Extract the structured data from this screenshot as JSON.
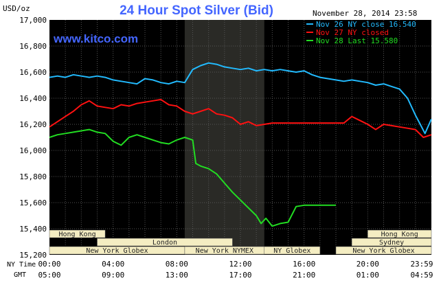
{
  "chart_data": {
    "type": "line",
    "title": "24 Hour Spot Silver (Bid)",
    "watermark": "www.kitco.com",
    "ylabel": "USD/oz",
    "date_label": "November 28, 2014 23:58",
    "ylim": [
      15.2,
      17.0
    ],
    "yticks": [
      "17,000",
      "16,800",
      "16,600",
      "16,400",
      "16,200",
      "16,000",
      "15,800",
      "15,600",
      "15,400",
      "15,200"
    ],
    "ytick_values": [
      17.0,
      16.8,
      16.6,
      16.4,
      16.2,
      16.0,
      15.8,
      15.6,
      15.4,
      15.2
    ],
    "x_axis_ny_label": "NY Time",
    "x_axis_gmt_label": "GMT",
    "x_ticks_ny": [
      "00:00",
      "04:00",
      "08:00",
      "12:00",
      "16:00",
      "20:00",
      "23:59"
    ],
    "x_ticks_gmt": [
      "05:00",
      "09:00",
      "13:00",
      "17:00",
      "21:00",
      "01:00",
      "04:59"
    ],
    "x_tick_hours": [
      0,
      4,
      8,
      12,
      16,
      20,
      23.98
    ],
    "highlight_hours": [
      8.5,
      13.5
    ],
    "colors": {
      "background": "#000000",
      "grid": "#555555",
      "highlight": "#2a2a26",
      "title": "#4466ff",
      "watermark": "#4466ff",
      "market_band": "#f4edc2",
      "market_text": "#222222"
    },
    "legend": [
      {
        "label": "Nov 26 NY close 16.540",
        "color": "#22bbff"
      },
      {
        "label": "Nov 27 NY closed",
        "color": "#ff1111"
      },
      {
        "label": "Nov 28 Last 15.580",
        "color": "#22dd22"
      }
    ],
    "series": [
      {
        "name": "Nov 26 NY close 16.540",
        "color": "#22bbff",
        "x": [
          0,
          0.5,
          1,
          1.5,
          2,
          2.5,
          3,
          3.5,
          4,
          4.5,
          5,
          5.5,
          6,
          6.5,
          7,
          7.5,
          8,
          8.5,
          9,
          9.5,
          10,
          10.5,
          11,
          11.5,
          12,
          12.5,
          13,
          13.5,
          14,
          14.5,
          15,
          15.5,
          16,
          16.5,
          17,
          17.5,
          18,
          18.5,
          19,
          19.5,
          20,
          20.5,
          21,
          21.5,
          22,
          22.5,
          23,
          23.3,
          23.6,
          24
        ],
        "y": [
          16.56,
          16.57,
          16.56,
          16.58,
          16.57,
          16.56,
          16.57,
          16.56,
          16.54,
          16.53,
          16.52,
          16.51,
          16.55,
          16.54,
          16.52,
          16.51,
          16.53,
          16.52,
          16.62,
          16.65,
          16.67,
          16.66,
          16.64,
          16.63,
          16.62,
          16.63,
          16.61,
          16.62,
          16.61,
          16.62,
          16.61,
          16.6,
          16.61,
          16.58,
          16.56,
          16.55,
          16.54,
          16.53,
          16.54,
          16.53,
          16.52,
          16.5,
          16.51,
          16.49,
          16.47,
          16.4,
          16.27,
          16.2,
          16.13,
          16.24
        ]
      },
      {
        "name": "Nov 27 NY closed",
        "color": "#ff1111",
        "x": [
          0,
          0.5,
          1,
          1.5,
          2,
          2.5,
          3,
          3.5,
          4,
          4.5,
          5,
          5.5,
          6,
          6.5,
          7,
          7.5,
          8,
          8.5,
          9,
          9.5,
          10,
          10.5,
          11,
          11.5,
          12,
          12.5,
          13,
          13.5,
          14,
          15,
          16,
          17,
          18,
          18.5,
          19,
          19.5,
          20,
          20.5,
          21,
          21.5,
          22,
          22.5,
          23,
          23.5,
          24
        ],
        "y": [
          16.18,
          16.22,
          16.26,
          16.3,
          16.35,
          16.38,
          16.34,
          16.33,
          16.32,
          16.35,
          16.34,
          16.36,
          16.37,
          16.38,
          16.39,
          16.35,
          16.34,
          16.3,
          16.28,
          16.3,
          16.32,
          16.28,
          16.27,
          16.25,
          16.2,
          16.22,
          16.19,
          16.2,
          16.21,
          16.21,
          16.21,
          16.21,
          16.21,
          16.21,
          16.26,
          16.23,
          16.2,
          16.16,
          16.2,
          16.19,
          16.18,
          16.17,
          16.16,
          16.1,
          16.12
        ]
      },
      {
        "name": "Nov 28 Last 15.580",
        "color": "#22dd22",
        "x": [
          0,
          0.5,
          1,
          1.5,
          2,
          2.5,
          3,
          3.5,
          4,
          4.5,
          5,
          5.5,
          6,
          6.5,
          7,
          7.5,
          8,
          8.5,
          9,
          9.2,
          9.5,
          10,
          10.5,
          11,
          11.5,
          12,
          12.5,
          13,
          13.3,
          13.6,
          14,
          14.5,
          15,
          15.5,
          16,
          17,
          18
        ],
        "y": [
          16.1,
          16.12,
          16.13,
          16.14,
          16.15,
          16.16,
          16.14,
          16.13,
          16.07,
          16.04,
          16.1,
          16.12,
          16.1,
          16.08,
          16.06,
          16.05,
          16.08,
          16.1,
          16.08,
          15.9,
          15.88,
          15.86,
          15.82,
          15.75,
          15.68,
          15.62,
          15.56,
          15.5,
          15.44,
          15.48,
          15.42,
          15.44,
          15.45,
          15.57,
          15.58,
          15.58,
          15.58
        ]
      }
    ],
    "markets": [
      {
        "name": "Hong Kong",
        "row": 0,
        "start": 0,
        "end": 3.5
      },
      {
        "name": "Hong Kong",
        "row": 0,
        "start": 20.0,
        "end": 24.0
      },
      {
        "name": "London",
        "row": 1,
        "start": 3.0,
        "end": 11.5
      },
      {
        "name": "Sydney",
        "row": 1,
        "start": 19.0,
        "end": 24.0
      },
      {
        "name": "New York Globex",
        "row": 2,
        "start": 0,
        "end": 8.5
      },
      {
        "name": "New York NYMEX",
        "row": 2,
        "start": 8.5,
        "end": 13.5
      },
      {
        "name": "NY Globex",
        "row": 2,
        "start": 13.5,
        "end": 17.0
      },
      {
        "name": "New York Globex",
        "row": 2,
        "start": 18.0,
        "end": 24.0
      }
    ]
  }
}
